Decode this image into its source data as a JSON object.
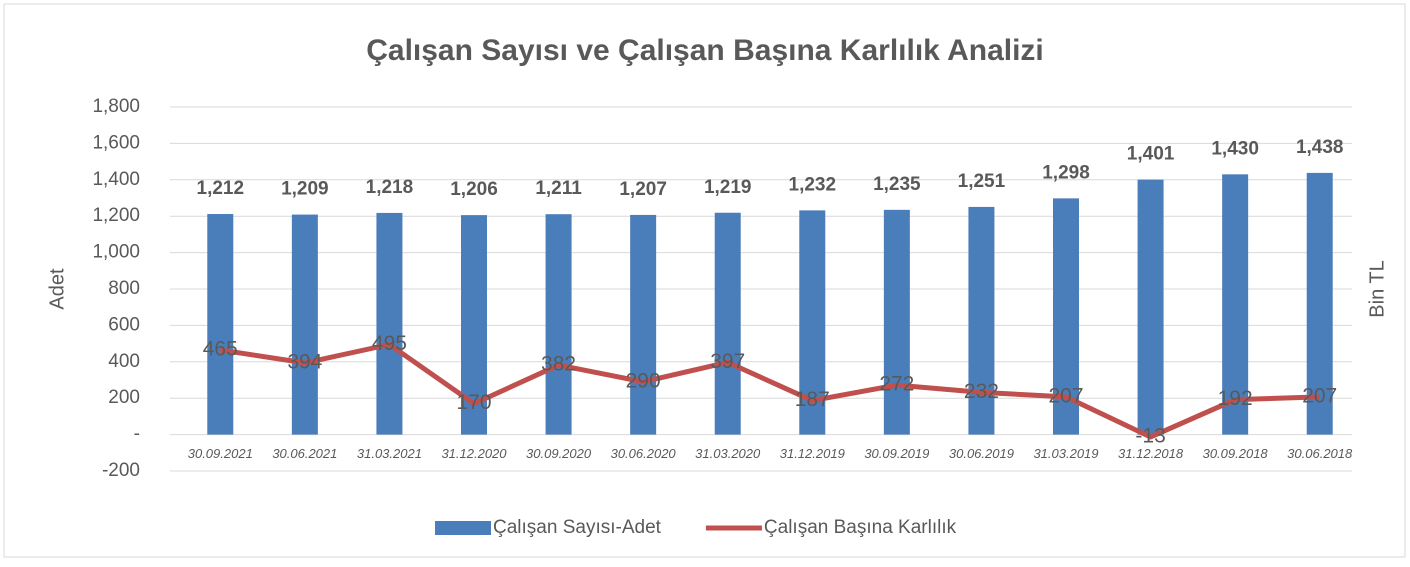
{
  "chart_data": {
    "type": "bar_line",
    "title": "Çalışan Sayısı ve Çalışan Başına Karlılık Analizi",
    "y_label": "Adet",
    "y2_label": "Bin TL",
    "categories": [
      "30.09.2021",
      "30.06.2021",
      "31.03.2021",
      "31.12.2020",
      "30.09.2020",
      "30.06.2020",
      "31.03.2020",
      "31.12.2019",
      "30.09.2019",
      "30.06.2019",
      "31.03.2019",
      "31.12.2018",
      "30.09.2018",
      "30.06.2018"
    ],
    "series": [
      {
        "name": "Çalışan Sayısı-Adet",
        "type": "bar",
        "color": "#4a7ebb",
        "values": [
          1212,
          1209,
          1218,
          1206,
          1211,
          1207,
          1219,
          1232,
          1235,
          1251,
          1298,
          1401,
          1430,
          1438
        ],
        "value_labels": [
          "1,212",
          "1,209",
          "1,218",
          "1,206",
          "1,211",
          "1,207",
          "1,219",
          "1,232",
          "1,235",
          "1,251",
          "1,298",
          "1,401",
          "1,430",
          "1,438"
        ]
      },
      {
        "name": "Çalışan Başına Karlılık",
        "type": "line",
        "color": "#c0504d",
        "values": [
          465,
          394,
          495,
          170,
          382,
          290,
          397,
          187,
          272,
          232,
          207,
          -13,
          192,
          207
        ]
      }
    ],
    "ylim": [
      -200,
      1800
    ],
    "yticks": [
      -200,
      {
        "value": 0,
        "label": "-"
      },
      200,
      400,
      600,
      800,
      {
        "value": 1000,
        "label": "1,000"
      },
      {
        "value": 1200,
        "label": "1,200"
      },
      {
        "value": 1400,
        "label": "1,400"
      },
      {
        "value": 1600,
        "label": "1,600"
      },
      {
        "value": 1800,
        "label": "1,800"
      }
    ],
    "grid": true,
    "legend": "bottom"
  }
}
